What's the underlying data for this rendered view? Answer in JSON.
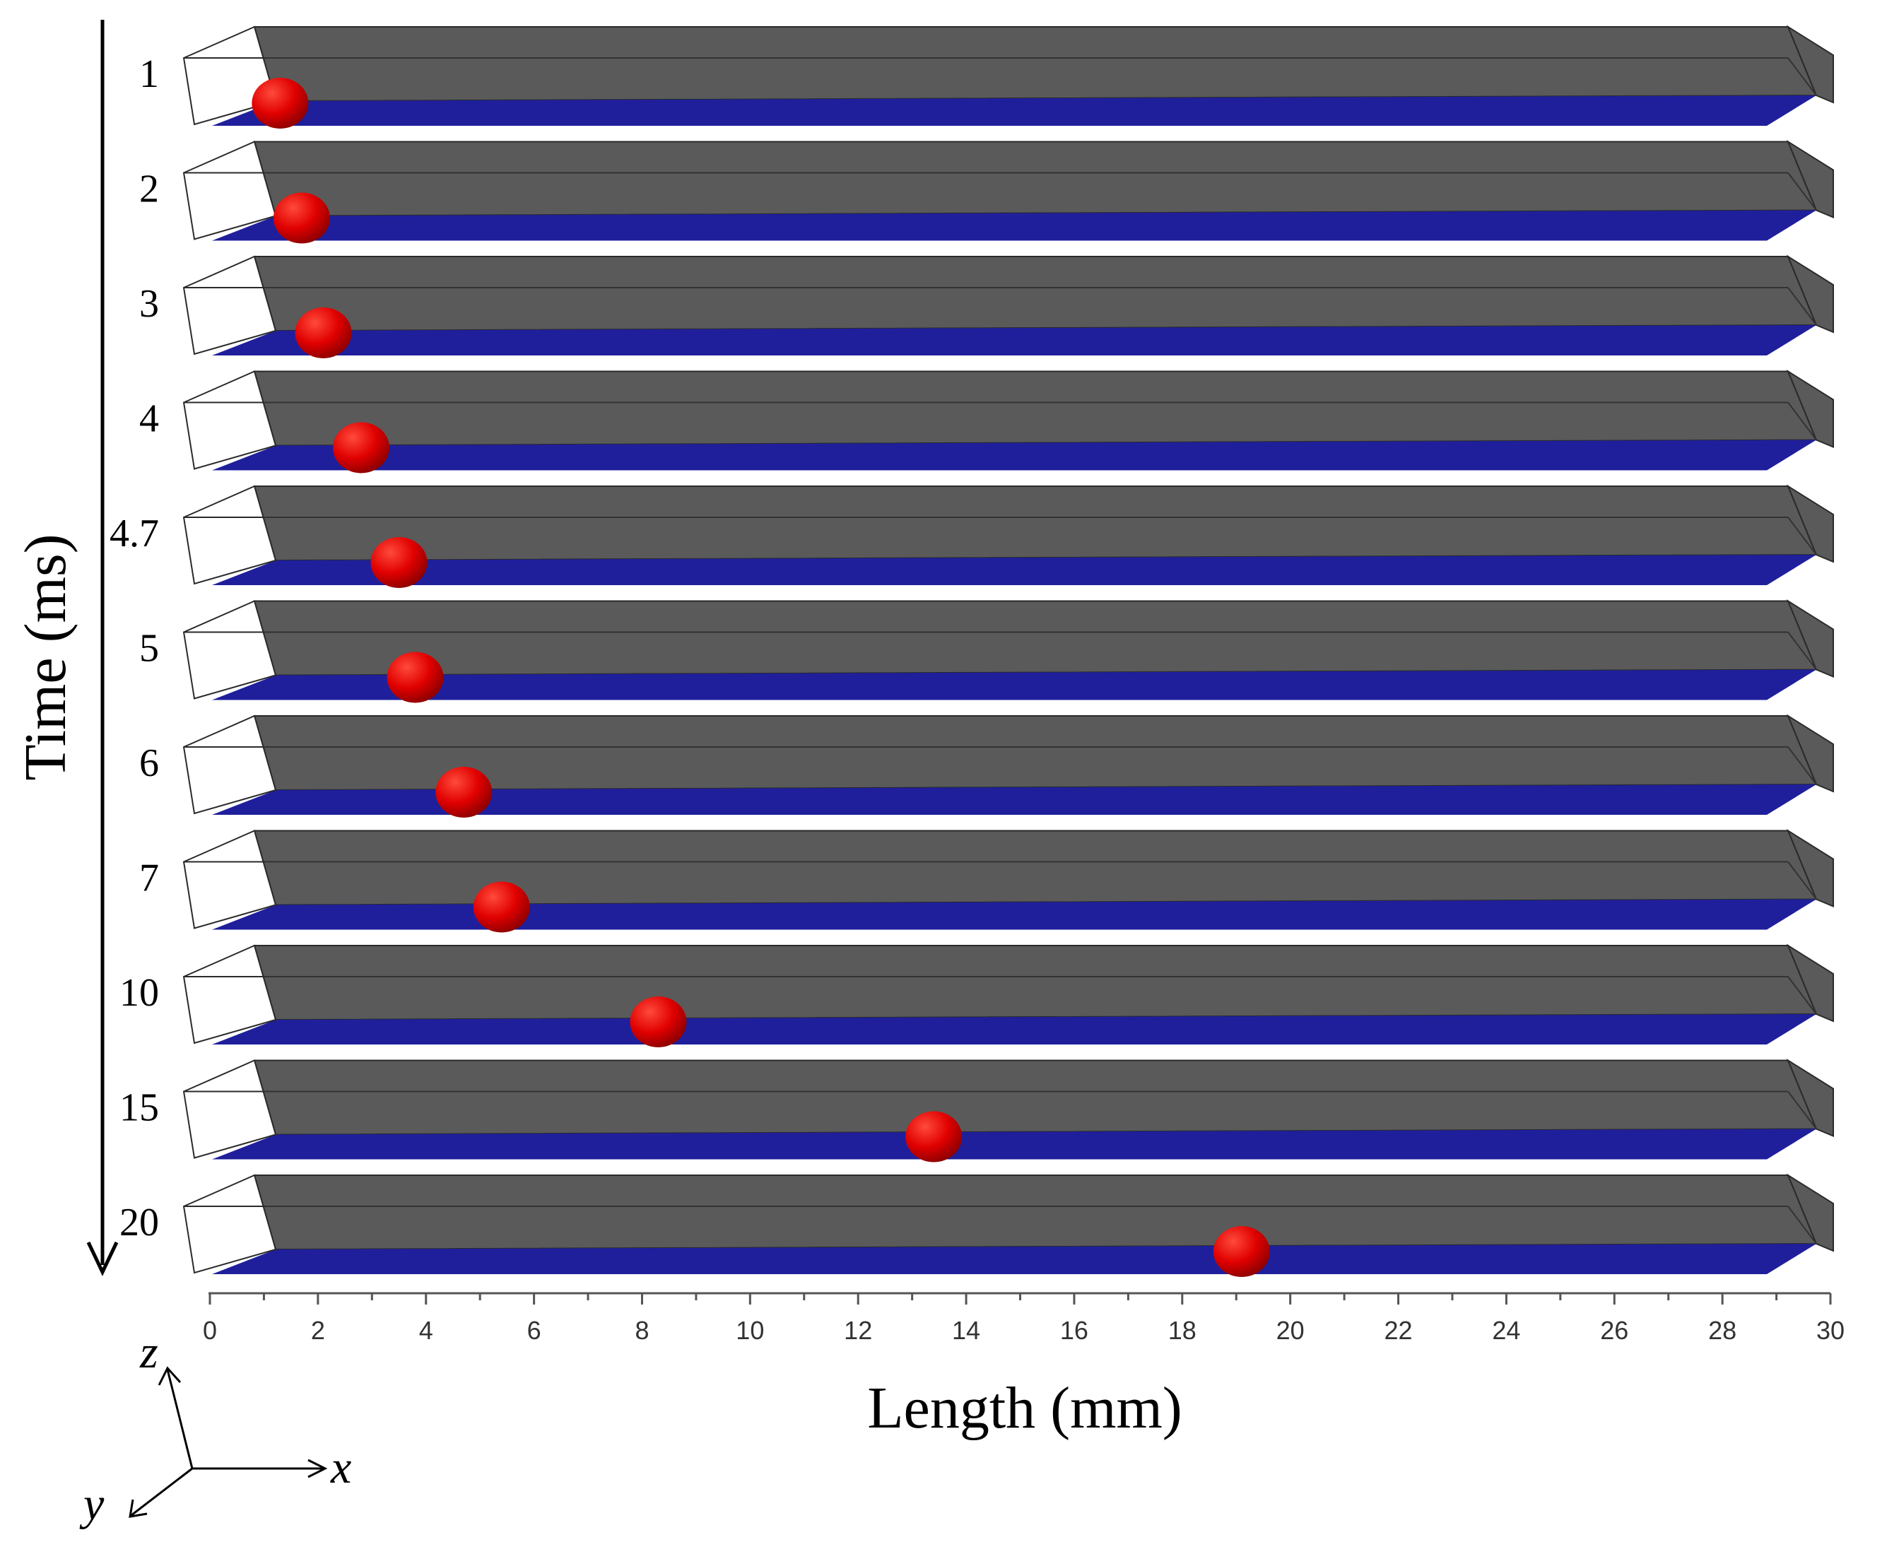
{
  "figure": {
    "y_axis_label": "Time (ms)",
    "x_axis_label": "Length (mm)",
    "axis_triad": {
      "z": "z",
      "x": "x",
      "y": "y"
    },
    "colors": {
      "channel_wall": "#5a5a5a",
      "channel_floor": "#1f1f9c",
      "droplet": "#e00000",
      "edge": "#2a2a2a"
    }
  },
  "chart_data": {
    "type": "scatter",
    "x_axis": {
      "label": "Length (mm)",
      "range": [
        0,
        30
      ],
      "ticks": [
        "0",
        "2",
        "4",
        "6",
        "8",
        "10",
        "12",
        "14",
        "16",
        "18",
        "20",
        "22",
        "24",
        "26",
        "28",
        "30"
      ]
    },
    "y_axis": {
      "label": "Time (ms)",
      "direction": "down"
    },
    "frames": [
      {
        "time": "1",
        "droplet_x": 1.3
      },
      {
        "time": "2",
        "droplet_x": 1.7
      },
      {
        "time": "3",
        "droplet_x": 2.1
      },
      {
        "time": "4",
        "droplet_x": 2.8
      },
      {
        "time": "4.7",
        "droplet_x": 3.5
      },
      {
        "time": "5",
        "droplet_x": 3.8
      },
      {
        "time": "6",
        "droplet_x": 4.7
      },
      {
        "time": "7",
        "droplet_x": 5.4
      },
      {
        "time": "10",
        "droplet_x": 8.3
      },
      {
        "time": "15",
        "droplet_x": 13.4
      },
      {
        "time": "20",
        "droplet_x": 19.1
      }
    ]
  }
}
